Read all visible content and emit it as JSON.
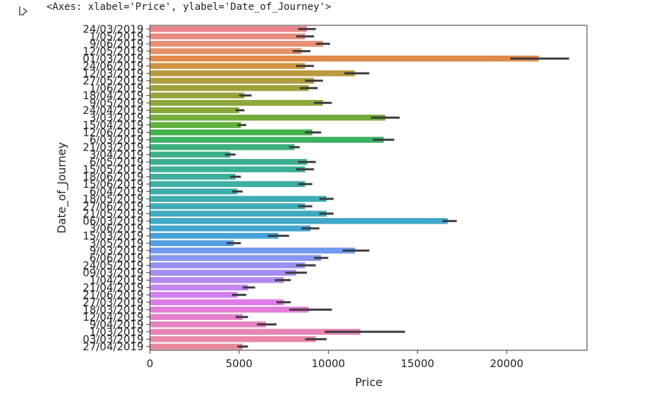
{
  "cell": {
    "output_text": "<Axes: xlabel='Price', ylabel='Date_of_Journey'>",
    "icon": "output-arrow-icon"
  },
  "chart_data": {
    "type": "bar",
    "orientation": "horizontal",
    "xlabel": "Price",
    "ylabel": "Date_of_Journey",
    "xlim": [
      0,
      24500
    ],
    "x_ticks": [
      0,
      5000,
      10000,
      15000,
      20000
    ],
    "categories": [
      "24/03/2019",
      "1/05/2019",
      "9/06/2019",
      "12/05/2019",
      "01/03/2019",
      "24/06/2019",
      "12/03/2019",
      "27/05/2019",
      "1/06/2019",
      "18/04/2019",
      "9/05/2019",
      "24/04/2019",
      "3/03/2019",
      "15/04/2019",
      "12/06/2019",
      "6/03/2019",
      "21/03/2019",
      "3/04/2019",
      "6/05/2019",
      "15/05/2019",
      "18/06/2019",
      "15/06/2019",
      "6/04/2019",
      "18/05/2019",
      "27/06/2019",
      "21/05/2019",
      "06/03/2019",
      "3/06/2019",
      "15/03/2019",
      "3/05/2019",
      "9/03/2019",
      "6/06/2019",
      "24/05/2019",
      "09/03/2019",
      "1/04/2019",
      "21/04/2019",
      "21/06/2019",
      "27/03/2019",
      "18/03/2019",
      "12/04/2019",
      "9/04/2019",
      "1/03/2019",
      "03/03/2019",
      "27/04/2019"
    ],
    "values": [
      8800,
      8700,
      9700,
      8500,
      21800,
      8700,
      11500,
      9200,
      8900,
      5300,
      9700,
      5000,
      13200,
      5100,
      9100,
      13100,
      8100,
      4500,
      8800,
      8700,
      4800,
      8700,
      4900,
      9900,
      8700,
      9900,
      16700,
      9000,
      7200,
      4700,
      11500,
      9600,
      8700,
      8200,
      7500,
      5500,
      4900,
      7500,
      8900,
      5200,
      6500,
      11800,
      9300,
      5200
    ],
    "error_bars": [
      [
        8300,
        9300
      ],
      [
        8200,
        9200
      ],
      [
        9300,
        10100
      ],
      [
        8000,
        9000
      ],
      [
        20200,
        23500
      ],
      [
        8200,
        9200
      ],
      [
        10900,
        12300
      ],
      [
        8700,
        9700
      ],
      [
        8400,
        9400
      ],
      [
        5000,
        5700
      ],
      [
        9200,
        10200
      ],
      [
        4800,
        5300
      ],
      [
        12400,
        14000
      ],
      [
        4900,
        5400
      ],
      [
        8700,
        9600
      ],
      [
        12500,
        13700
      ],
      [
        7800,
        8400
      ],
      [
        4200,
        4800
      ],
      [
        8300,
        9300
      ],
      [
        8200,
        9200
      ],
      [
        4500,
        5100
      ],
      [
        8300,
        9100
      ],
      [
        4600,
        5200
      ],
      [
        9500,
        10300
      ],
      [
        8300,
        9100
      ],
      [
        9500,
        10300
      ],
      [
        16400,
        17200
      ],
      [
        8500,
        9500
      ],
      [
        6600,
        7800
      ],
      [
        4300,
        5100
      ],
      [
        10800,
        12300
      ],
      [
        9200,
        10000
      ],
      [
        8200,
        9300
      ],
      [
        7600,
        8800
      ],
      [
        7000,
        7900
      ],
      [
        5200,
        5900
      ],
      [
        4600,
        5400
      ],
      [
        7100,
        7900
      ],
      [
        7800,
        10200
      ],
      [
        4800,
        5500
      ],
      [
        6000,
        7100
      ],
      [
        9800,
        14300
      ],
      [
        8700,
        9900
      ],
      [
        4900,
        5500
      ]
    ],
    "colors": [
      "#e9868b",
      "#e78b7f",
      "#e68f74",
      "#e69169",
      "#e0894b",
      "#cf9340",
      "#bb9a3f",
      "#ad9e3e",
      "#a1a13b",
      "#97a53d",
      "#8ca73b",
      "#86a83a",
      "#75ab3c",
      "#60ae3e",
      "#44b04c",
      "#3db166",
      "#3eb079",
      "#3bb187",
      "#3db08f",
      "#3db097",
      "#3eaf9d",
      "#3faea4",
      "#3daeac",
      "#3dadb3",
      "#3facb9",
      "#40aac0",
      "#40a8c8",
      "#42a6cf",
      "#47a2d8",
      "#569ee4",
      "#6f9af0",
      "#8797f0",
      "#9891ef",
      "#a28df0",
      "#b28aef",
      "#c186ef",
      "#d17fed",
      "#df7ae9",
      "#e37dd8",
      "#e581cd",
      "#e583c2",
      "#e685b5",
      "#e887a9",
      "#e8889d"
    ],
    "grid": false,
    "legend": "none"
  }
}
